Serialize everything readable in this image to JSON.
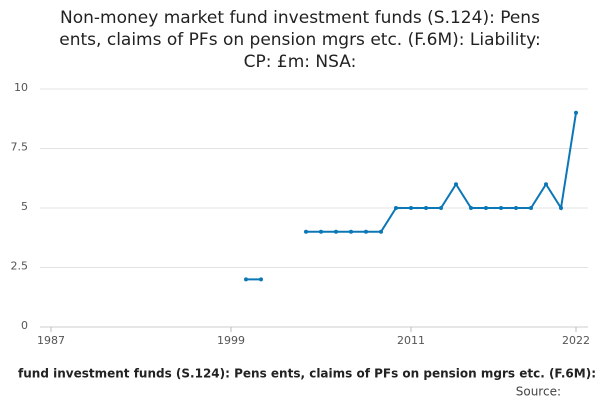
{
  "chart_data": {
    "type": "line",
    "title_lines": [
      "Non-money market fund investment funds (S.124): Pens",
      "ents, claims of PFs on pension mgrs etc. (F.6M): Liability:",
      "CP: £m: NSA:"
    ],
    "footer": "fund investment funds (S.124): Pens ents, claims of PFs on pension mgrs etc. (F.6M):",
    "source": "Source:",
    "x": [
      2000,
      2001,
      2002,
      2003,
      2004,
      2005,
      2006,
      2007,
      2008,
      2009,
      2010,
      2011,
      2012,
      2013,
      2014,
      2015,
      2016,
      2017,
      2018,
      2019,
      2020,
      2021,
      2022
    ],
    "series": [
      {
        "color": "#0b77b6",
        "values": [
          2,
          2,
          null,
          null,
          4,
          4,
          4,
          4,
          4,
          4,
          5,
          5,
          5,
          5,
          6,
          5,
          5,
          5,
          5,
          5,
          6,
          5,
          9
        ]
      }
    ],
    "xlim": [
      1987,
      2022
    ],
    "xticks": [
      1987,
      1999,
      2011,
      2022
    ],
    "ylim": [
      0,
      10
    ],
    "yticks": [
      0,
      2.5,
      5,
      7.5,
      10
    ],
    "grid": true
  }
}
